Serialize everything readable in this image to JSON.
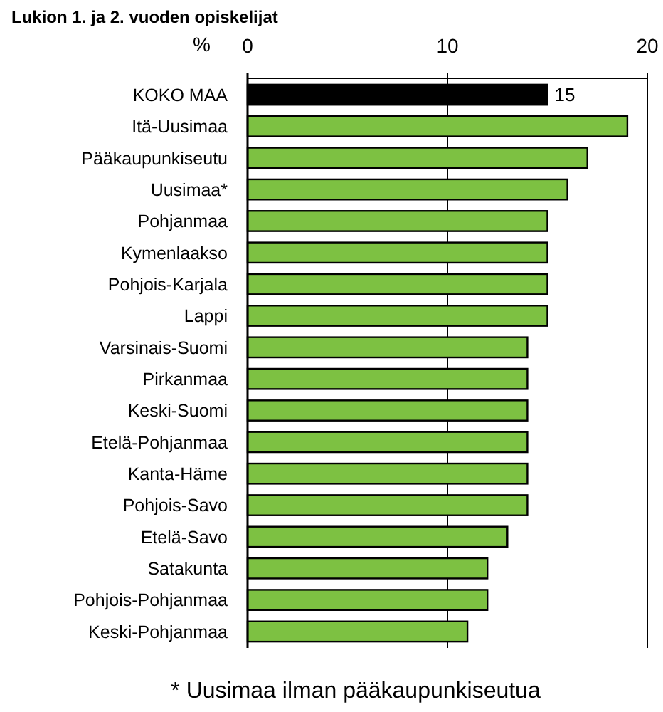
{
  "chart_data": {
    "type": "bar",
    "orientation": "horizontal",
    "title": "Lukion 1. ja 2. vuoden opiskelijat",
    "xlabel": "%",
    "categories": [
      "KOKO MAA",
      "Itä-Uusimaa",
      "Pääkaupunkiseutu",
      "Uusimaa*",
      "Pohjanmaa",
      "Kymenlaakso",
      "Pohjois-Karjala",
      "Lappi",
      "Varsinais-Suomi",
      "Pirkanmaa",
      "Keski-Suomi",
      "Etelä-Pohjanmaa",
      "Kanta-Häme",
      "Pohjois-Savo",
      "Etelä-Savo",
      "Satakunta",
      "Pohjois-Pohjanmaa",
      "Keski-Pohjanmaa"
    ],
    "values": [
      15,
      19,
      17,
      16,
      15,
      15,
      15,
      15,
      14,
      14,
      14,
      14,
      14,
      14,
      13,
      12,
      12,
      11
    ],
    "value_labels": [
      "15",
      null,
      null,
      null,
      null,
      null,
      null,
      null,
      null,
      null,
      null,
      null,
      null,
      null,
      null,
      null,
      null,
      null
    ],
    "colors": [
      "#000000",
      "#7dc142",
      "#7dc142",
      "#7dc142",
      "#7dc142",
      "#7dc142",
      "#7dc142",
      "#7dc142",
      "#7dc142",
      "#7dc142",
      "#7dc142",
      "#7dc142",
      "#7dc142",
      "#7dc142",
      "#7dc142",
      "#7dc142",
      "#7dc142",
      "#7dc142"
    ],
    "xlim": [
      0,
      20
    ],
    "xticks": [
      0,
      10,
      20
    ],
    "grid": "x",
    "annotations": [
      "* Uusimaa ilman pääkaupunkiseutua"
    ]
  }
}
